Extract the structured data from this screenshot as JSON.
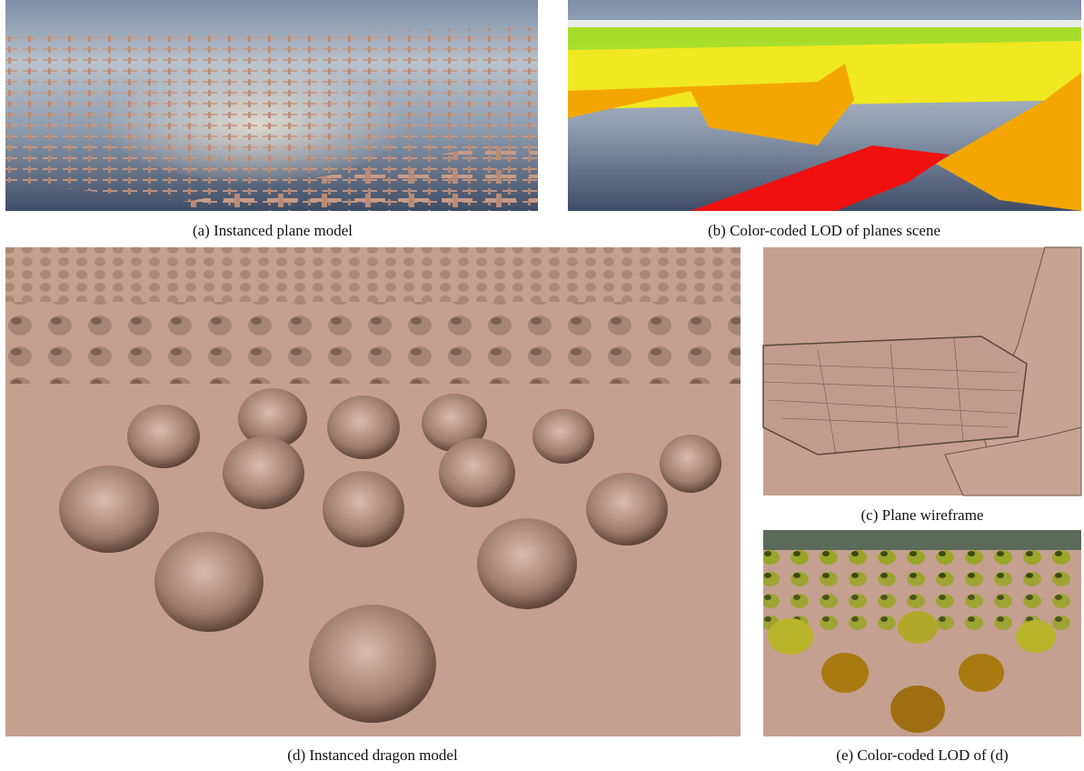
{
  "panels": [
    {
      "caption": "(a) Instanced plane model"
    },
    {
      "caption": "(b) Color-coded LOD of planes scene"
    },
    {
      "caption": "(c) Plane wireframe"
    },
    {
      "caption": "(d) Instanced dragon model"
    },
    {
      "caption": "(e) Color-coded LOD of (d)"
    }
  ]
}
